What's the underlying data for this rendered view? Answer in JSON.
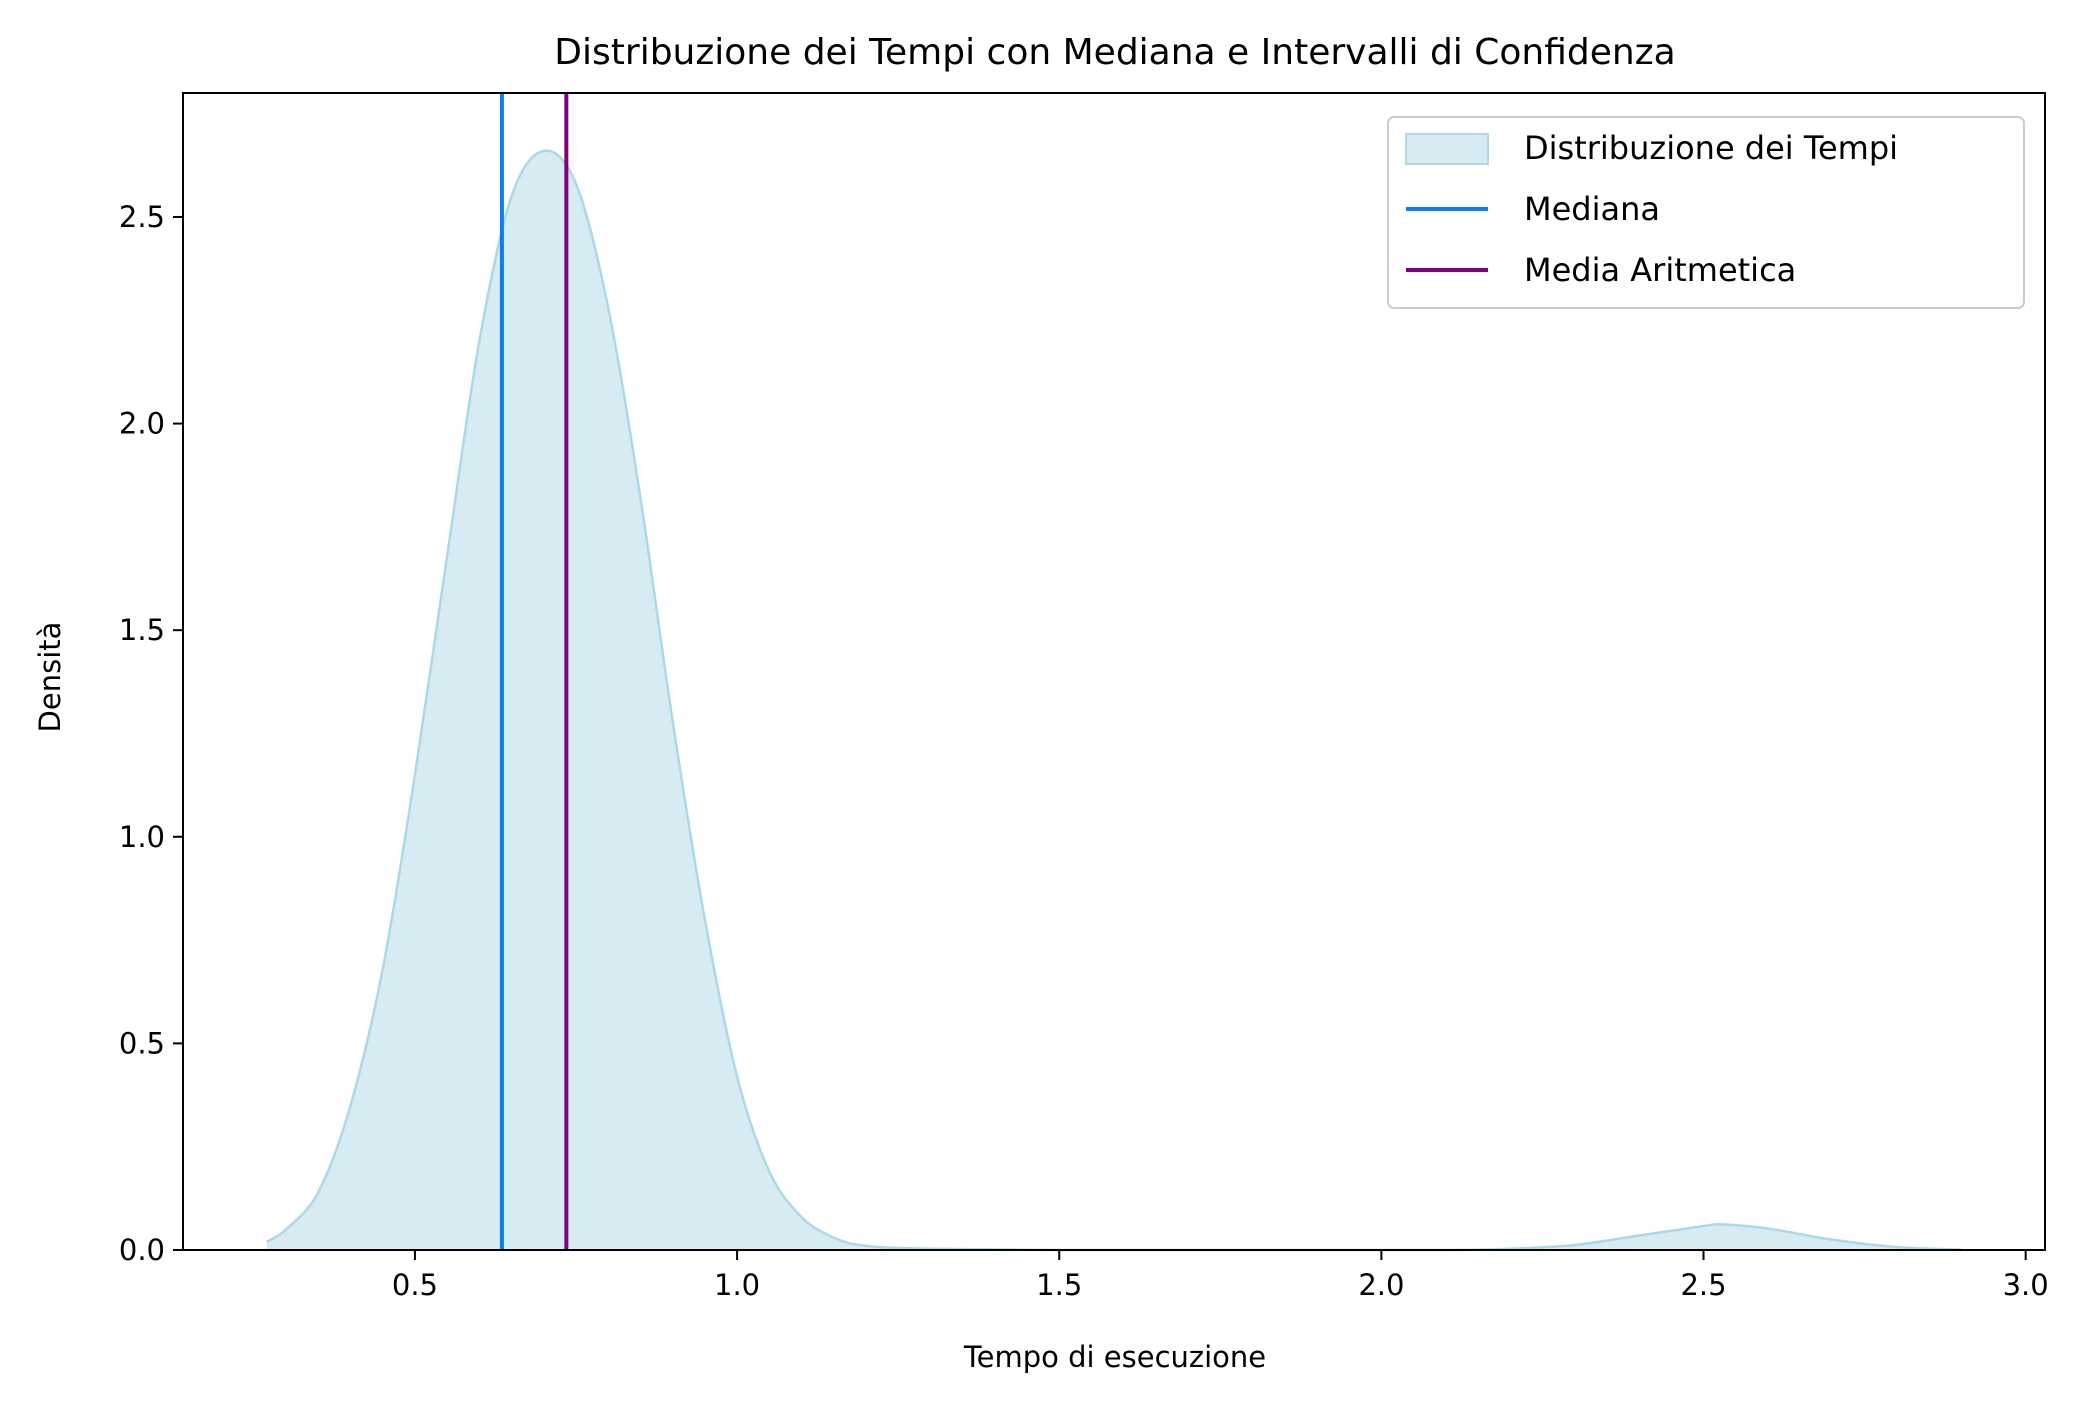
{
  "chart_data": {
    "type": "area",
    "title": "Distribuzione dei Tempi con Mediana e Intervalli di Confidenza",
    "xlabel": "Tempo di esecuzione",
    "ylabel": "Densità",
    "xlim": [
      0.14,
      3.03
    ],
    "ylim": [
      0,
      2.8
    ],
    "xticks": [
      0.5,
      1.0,
      1.5,
      2.0,
      2.5,
      3.0
    ],
    "xtick_labels": [
      "0.5",
      "1.0",
      "1.5",
      "2.0",
      "2.5",
      "3.0"
    ],
    "yticks": [
      0.0,
      0.5,
      1.0,
      1.5,
      2.0,
      2.5
    ],
    "ytick_labels": [
      "0.0",
      "0.5",
      "1.0",
      "1.5",
      "2.0",
      "2.5"
    ],
    "grid": false,
    "legend_position": "top-right",
    "series": [
      {
        "name": "Distribuzione dei Tempi",
        "kind": "density-area",
        "fill_color": "#add8e6",
        "line_color": "#add8e6",
        "x": [
          0.27,
          0.3,
          0.35,
          0.4,
          0.45,
          0.5,
          0.55,
          0.6,
          0.65,
          0.7,
          0.75,
          0.8,
          0.85,
          0.9,
          0.95,
          1.0,
          1.05,
          1.1,
          1.15,
          1.2,
          1.3,
          1.5,
          1.8,
          2.1,
          2.2,
          2.3,
          2.4,
          2.5,
          2.53,
          2.6,
          2.7,
          2.8,
          2.9
        ],
        "y": [
          0.02,
          0.05,
          0.14,
          0.35,
          0.68,
          1.15,
          1.68,
          2.2,
          2.55,
          2.66,
          2.58,
          2.28,
          1.82,
          1.28,
          0.8,
          0.42,
          0.19,
          0.08,
          0.03,
          0.01,
          0.003,
          0.0,
          0.0,
          0.0,
          0.003,
          0.012,
          0.035,
          0.058,
          0.062,
          0.052,
          0.025,
          0.007,
          0.001
        ]
      },
      {
        "name": "Mediana",
        "kind": "vline",
        "x": 0.635,
        "color": "#0a7eed"
      },
      {
        "name": "Media Aritmetica",
        "kind": "vline",
        "x": 0.735,
        "color": "#800080"
      }
    ]
  }
}
